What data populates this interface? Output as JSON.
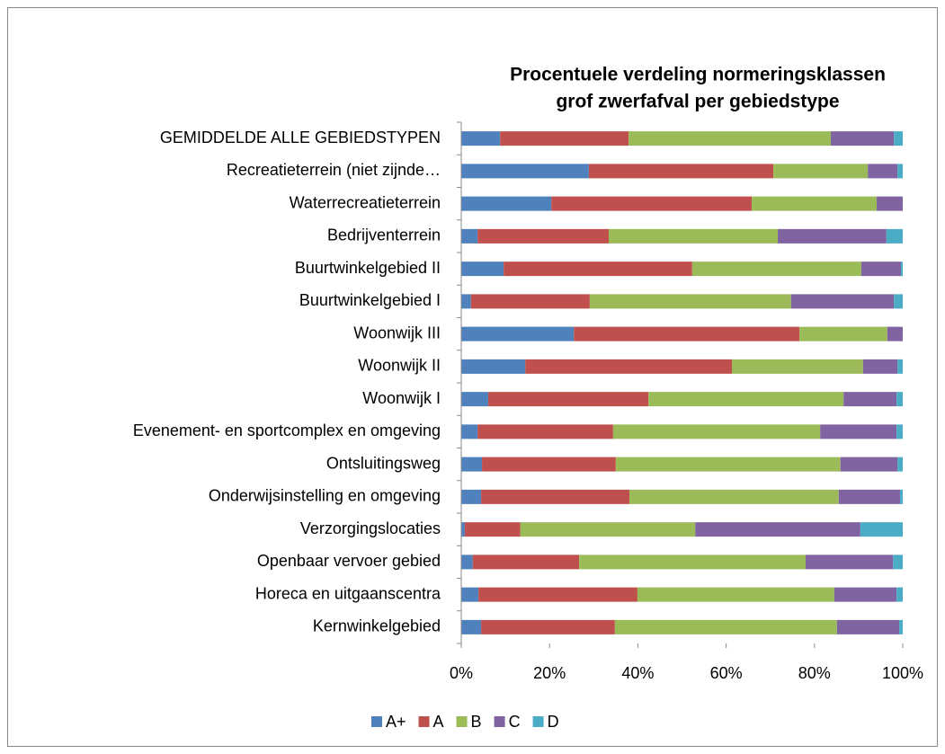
{
  "chart_data": {
    "type": "stacked-bar-horizontal",
    "title": [
      "Procentuele verdeling normeringsklassen",
      "grof zwerfafval per gebiedstype"
    ],
    "categories": [
      "GEMIDDELDE ALLE GEBIEDSTYPEN",
      "Recreatieterrein (niet zijnde…",
      "Waterrecreatieterrein",
      "Bedrijventerrein",
      "Buurtwinkelgebied II",
      "Buurtwinkelgebied I",
      "Woonwijk III",
      "Woonwijk II",
      "Woonwijk I",
      "Evenement- en sportcomplex en omgeving",
      "Ontsluitingsweg",
      "Onderwijsinstelling en omgeving",
      "Verzorgingslocaties",
      "Openbaar vervoer gebied",
      "Horeca en uitgaanscentra",
      "Kernwinkelgebied"
    ],
    "series": [
      {
        "name": "A+",
        "color": "#4f81bd",
        "values": [
          8.8,
          28.9,
          20.4,
          3.7,
          9.6,
          2.2,
          25.5,
          14.5,
          6.1,
          3.7,
          4.7,
          4.5,
          0.8,
          2.6,
          3.9,
          4.5
        ]
      },
      {
        "name": "A",
        "color": "#c0504d",
        "values": [
          29.1,
          41.8,
          45.4,
          29.7,
          42.7,
          26.9,
          51.1,
          46.8,
          36.3,
          30.7,
          30.3,
          33.6,
          12.6,
          24.1,
          36.0,
          30.3
        ]
      },
      {
        "name": "B",
        "color": "#9bbb59",
        "values": [
          45.8,
          21.4,
          28.3,
          38.3,
          38.3,
          45.6,
          19.9,
          29.7,
          44.2,
          46.9,
          50.9,
          47.4,
          39.6,
          51.3,
          44.6,
          50.3
        ]
      },
      {
        "name": "C",
        "color": "#8064a2",
        "values": [
          14.3,
          6.7,
          5.9,
          24.6,
          9.0,
          23.3,
          3.5,
          7.8,
          12.0,
          17.3,
          12.9,
          13.9,
          37.4,
          19.8,
          14.1,
          14.1
        ]
      },
      {
        "name": "D",
        "color": "#4bacc6",
        "values": [
          2.0,
          1.2,
          0,
          3.7,
          0.4,
          2.0,
          0,
          1.2,
          1.4,
          1.4,
          1.2,
          0.6,
          9.6,
          2.2,
          1.4,
          0.8
        ]
      }
    ],
    "xlim": [
      0,
      100
    ],
    "xticks": [
      {
        "value": 0,
        "label": "0%"
      },
      {
        "value": 20,
        "label": "20%"
      },
      {
        "value": 40,
        "label": "40%"
      },
      {
        "value": 60,
        "label": "60%"
      },
      {
        "value": 80,
        "label": "80%"
      },
      {
        "value": 100,
        "label": "100%"
      }
    ],
    "legend": "bottom"
  }
}
